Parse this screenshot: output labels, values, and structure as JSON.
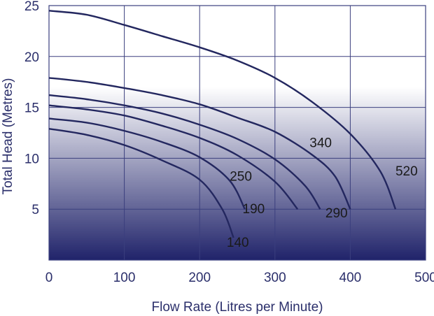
{
  "chart_data": {
    "type": "line",
    "xlabel": "Flow Rate (Litres per Minute)",
    "ylabel": "Total Head (Metres)",
    "xlim": [
      0,
      500
    ],
    "ylim": [
      0,
      25
    ],
    "x_ticks": [
      "0",
      "100",
      "200",
      "300",
      "400",
      "500"
    ],
    "y_ticks": [
      "5",
      "10",
      "15",
      "20",
      "25"
    ],
    "grid": true,
    "background": {
      "top": "#ffffff",
      "bottom": "#20236a"
    },
    "line_color": "#23275f",
    "series": [
      {
        "name": "520",
        "points": [
          [
            0,
            24.5
          ],
          [
            50,
            24.1
          ],
          [
            100,
            23.1
          ],
          [
            150,
            22.0
          ],
          [
            200,
            20.9
          ],
          [
            250,
            19.6
          ],
          [
            300,
            17.9
          ],
          [
            350,
            15.5
          ],
          [
            400,
            12.4
          ],
          [
            440,
            8.7
          ],
          [
            460,
            5.0
          ]
        ]
      },
      {
        "name": "340",
        "points": [
          [
            0,
            17.9
          ],
          [
            50,
            17.5
          ],
          [
            100,
            16.9
          ],
          [
            150,
            16.2
          ],
          [
            200,
            15.3
          ],
          [
            250,
            14.0
          ],
          [
            300,
            12.6
          ],
          [
            350,
            10.3
          ],
          [
            380,
            8.2
          ],
          [
            400,
            5.0
          ]
        ]
      },
      {
        "name": "290",
        "points": [
          [
            0,
            16.2
          ],
          [
            50,
            15.8
          ],
          [
            100,
            15.2
          ],
          [
            150,
            14.4
          ],
          [
            200,
            13.3
          ],
          [
            250,
            11.9
          ],
          [
            300,
            9.9
          ],
          [
            340,
            7.3
          ],
          [
            360,
            5.0
          ]
        ]
      },
      {
        "name": "250",
        "points": [
          [
            0,
            15.2
          ],
          [
            50,
            14.8
          ],
          [
            100,
            14.2
          ],
          [
            150,
            13.2
          ],
          [
            200,
            12.0
          ],
          [
            250,
            10.3
          ],
          [
            300,
            7.7
          ],
          [
            330,
            5.0
          ]
        ]
      },
      {
        "name": "190",
        "points": [
          [
            0,
            13.9
          ],
          [
            50,
            13.5
          ],
          [
            100,
            12.7
          ],
          [
            150,
            11.6
          ],
          [
            200,
            10.1
          ],
          [
            240,
            7.8
          ],
          [
            260,
            5.0
          ]
        ]
      },
      {
        "name": "140",
        "points": [
          [
            0,
            12.9
          ],
          [
            50,
            12.3
          ],
          [
            100,
            11.3
          ],
          [
            150,
            9.8
          ],
          [
            200,
            7.9
          ],
          [
            230,
            5.0
          ],
          [
            245,
            2.2
          ]
        ]
      }
    ],
    "curve_labels": [
      {
        "text": "520",
        "x": 460,
        "y": 8.3
      },
      {
        "text": "340",
        "x": 346,
        "y": 11.1
      },
      {
        "text": "290",
        "x": 367,
        "y": 4.2
      },
      {
        "text": "250",
        "x": 240,
        "y": 7.8
      },
      {
        "text": "190",
        "x": 257,
        "y": 4.6
      },
      {
        "text": "140",
        "x": 236,
        "y": 1.3
      }
    ]
  }
}
